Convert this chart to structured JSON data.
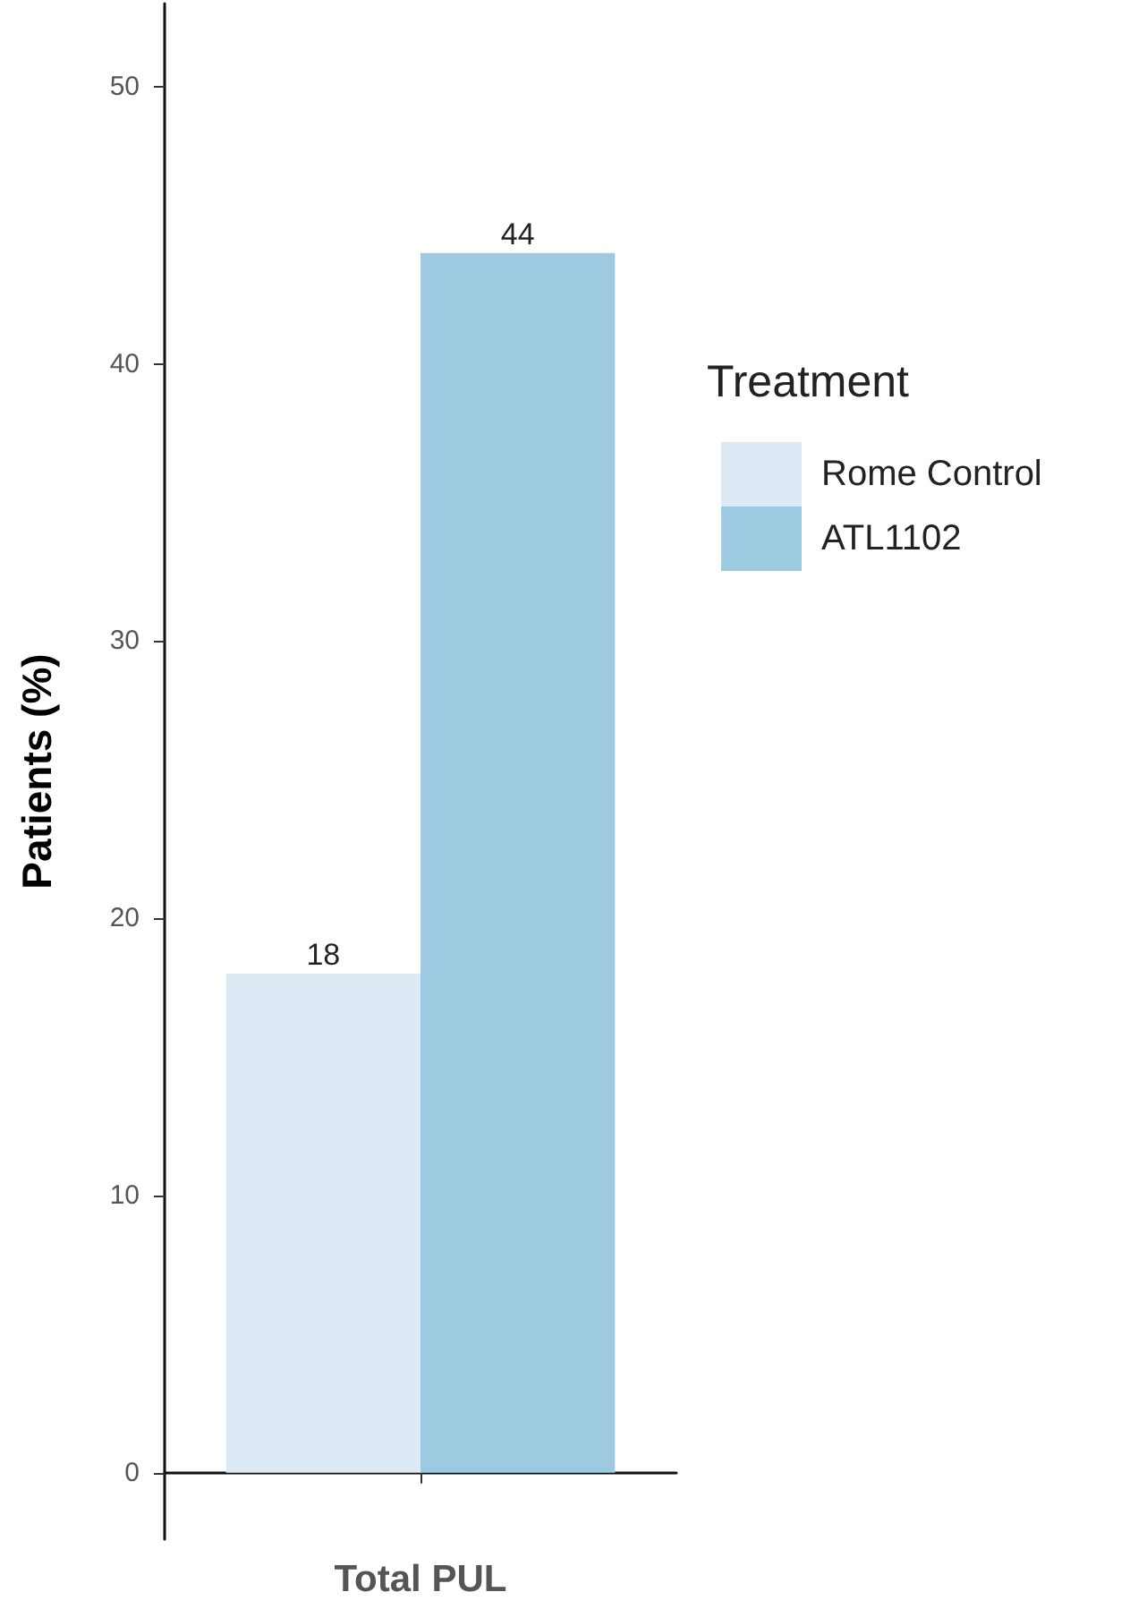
{
  "chart_data": {
    "type": "bar",
    "categories": [
      "Total PUL"
    ],
    "ylabel": "Patients (%)",
    "legend_title": "Treatment",
    "series": [
      {
        "name": "Rome Control",
        "color": "#dde9f5",
        "values": [
          18
        ]
      },
      {
        "name": "ATL1102",
        "color": "#9ecae1",
        "values": [
          44
        ]
      }
    ],
    "ylim": [
      -2.4,
      53
    ],
    "yticks": [
      0,
      10,
      20,
      30,
      40,
      50
    ],
    "grid": false,
    "legend": "right",
    "data_labels": true
  }
}
